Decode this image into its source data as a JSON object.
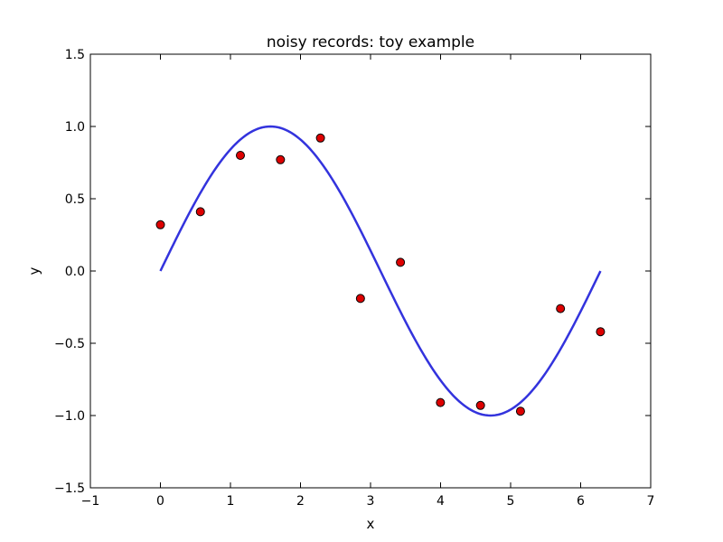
{
  "chart_data": {
    "type": "scatter",
    "title": "noisy records: toy example",
    "xlabel": "x",
    "ylabel": "y",
    "xlim": [
      -1,
      7
    ],
    "ylim": [
      -1.5,
      1.5
    ],
    "xticks": [
      -1,
      0,
      1,
      2,
      3,
      4,
      5,
      6,
      7
    ],
    "yticks": [
      -1.5,
      -1.0,
      -0.5,
      0.0,
      0.5,
      1.0,
      1.5
    ],
    "xtick_labels": [
      "−1",
      "0",
      "1",
      "2",
      "3",
      "4",
      "5",
      "6",
      "7"
    ],
    "ytick_labels": [
      "−1.5",
      "−1.0",
      "−0.5",
      "0.0",
      "0.5",
      "1.0",
      "1.5"
    ],
    "grid": false,
    "series": [
      {
        "kind": "line",
        "function": "sin(x)",
        "x_range": [
          0,
          6.283
        ],
        "color": "#3333dd"
      },
      {
        "kind": "scatter",
        "color": "#dd0000",
        "edge_color": "#000000",
        "x": [
          0.0,
          0.571,
          1.142,
          1.714,
          2.285,
          2.856,
          3.427,
          3.998,
          4.57,
          5.141,
          5.712,
          6.283
        ],
        "y": [
          0.32,
          0.41,
          0.8,
          0.77,
          0.92,
          -0.19,
          0.06,
          -0.91,
          -0.93,
          -0.97,
          -0.26,
          -0.42
        ]
      }
    ]
  }
}
